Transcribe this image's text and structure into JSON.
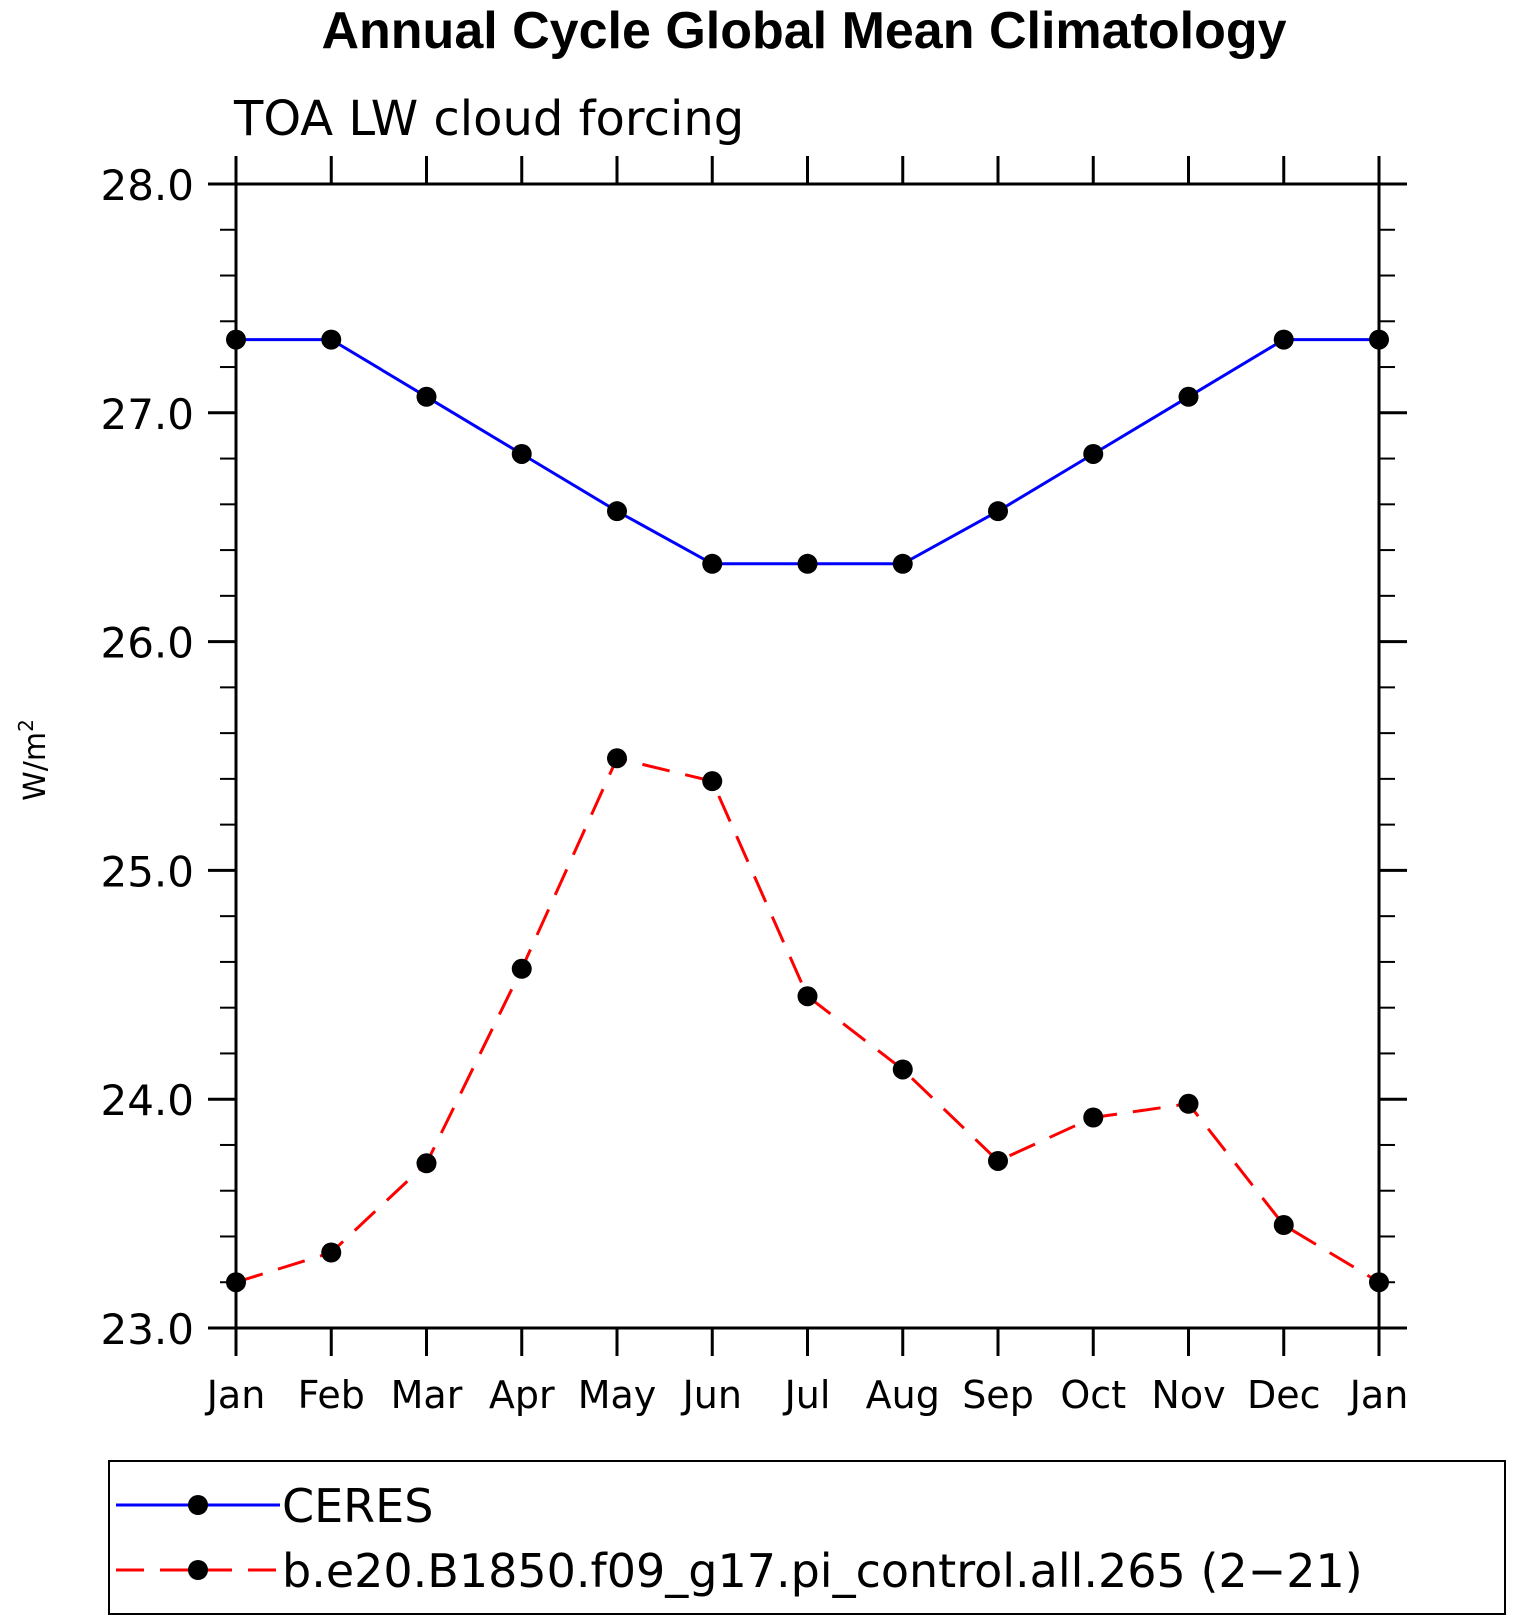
{
  "chart_data": {
    "type": "line",
    "title": "Annual Cycle Global Mean Climatology",
    "subtitle": "TOA LW cloud forcing",
    "ylabel": "W/m",
    "ylabel_superscript": "2",
    "xlabel": "",
    "categories": [
      "Jan",
      "Feb",
      "Mar",
      "Apr",
      "May",
      "Jun",
      "Jul",
      "Aug",
      "Sep",
      "Oct",
      "Nov",
      "Dec",
      "Jan"
    ],
    "ylim": [
      23.0,
      28.0
    ],
    "yticks": [
      "23.0",
      "24.0",
      "25.0",
      "26.0",
      "27.0",
      "28.0"
    ],
    "grid": false,
    "legend_position": "bottom",
    "series": [
      {
        "name": "CERES",
        "color": "#0000ff",
        "line_style": "solid",
        "marker": "filled-circle",
        "values": [
          27.32,
          27.32,
          27.07,
          26.82,
          26.57,
          26.34,
          26.34,
          26.34,
          26.57,
          26.82,
          27.07,
          27.32,
          27.32
        ]
      },
      {
        "name": "b.e20.B1850.f09_g17.pi_control.all.265 (2−21)",
        "color": "#ff0000",
        "line_style": "dashed",
        "marker": "filled-circle",
        "values": [
          23.2,
          23.33,
          23.72,
          24.57,
          25.49,
          25.39,
          24.45,
          24.13,
          23.73,
          23.92,
          23.98,
          23.45,
          23.2
        ]
      }
    ]
  }
}
